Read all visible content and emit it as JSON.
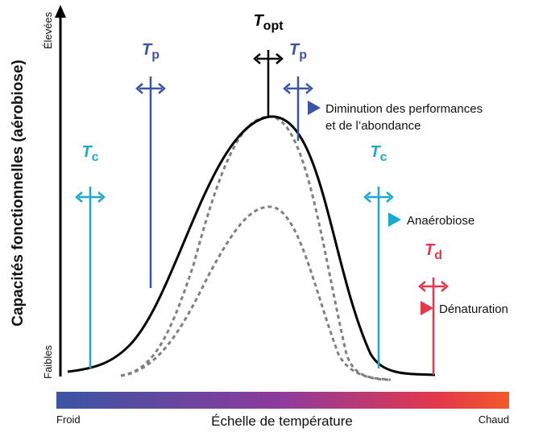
{
  "axis": {
    "title": "Capacités fonctionnelles (aérobiose)",
    "high": "Élevées",
    "low": "Faibles"
  },
  "thresholds": [
    {
      "symbol": "T",
      "sub": "c"
    },
    {
      "symbol": "T",
      "sub": "p"
    },
    {
      "symbol": "T",
      "sub": "opt"
    },
    {
      "symbol": "T",
      "sub": "p"
    },
    {
      "symbol": "T",
      "sub": "c"
    },
    {
      "symbol": "T",
      "sub": "d"
    }
  ],
  "notes": [
    {
      "lines": [
        "Diminution des performances",
        "et de l’abondance"
      ]
    },
    {
      "lines": [
        "Anaérobiose"
      ]
    },
    {
      "lines": [
        "Dénaturation"
      ]
    }
  ],
  "scale": {
    "title": "Échelle de température",
    "left": "Froid",
    "right": "Chaud"
  }
}
